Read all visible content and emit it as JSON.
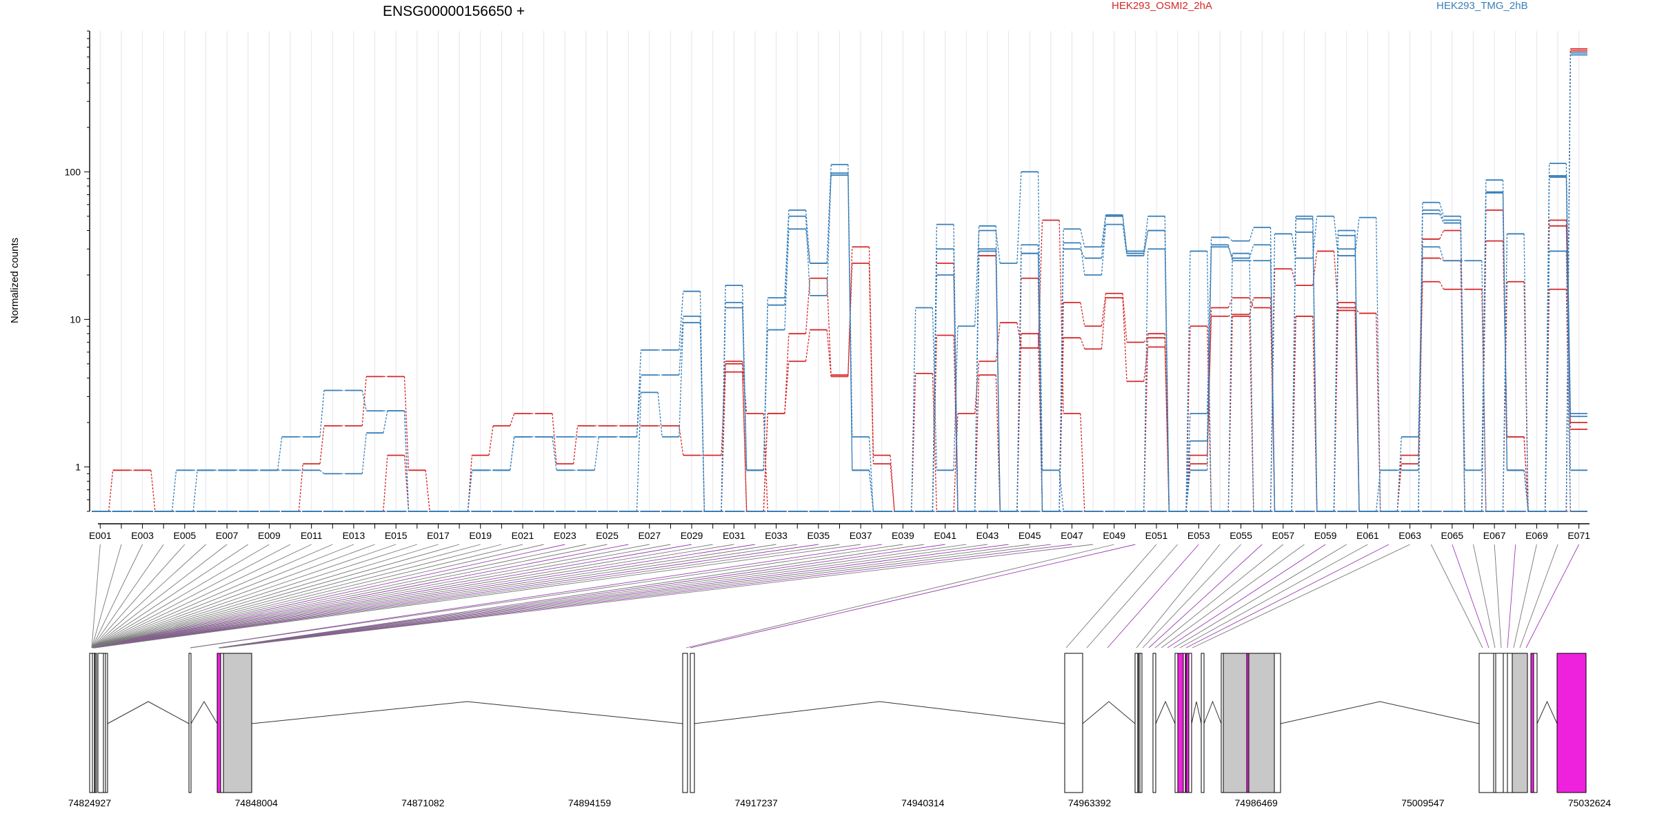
{
  "chart_data": {
    "type": "line",
    "title": "ENSG00000156650 +",
    "ylabel": "Normalized counts",
    "yscale": "log",
    "ylim": [
      0.5,
      900
    ],
    "y_ticks": [
      1,
      10,
      100
    ],
    "y_tick_labels": [
      "1",
      "10",
      "100"
    ],
    "grid": "vertical",
    "legend_placement": "top",
    "colors": {
      "HEK293_OSMI2_2hA": "#d62728",
      "HEK293_TMG_2hB": "#377eb8"
    },
    "exon_labels": [
      "E001",
      "E003",
      "E005",
      "E007",
      "E009",
      "E011",
      "E013",
      "E015",
      "E017",
      "E019",
      "E021",
      "E023",
      "E025",
      "E027",
      "E029",
      "E031",
      "E033",
      "E035",
      "E037",
      "E039",
      "E041",
      "E043",
      "E045",
      "E047",
      "E049",
      "E051",
      "E053",
      "E055",
      "E057",
      "E059",
      "E061",
      "E063",
      "E065",
      "E067",
      "E069",
      "E071"
    ],
    "series": [
      {
        "name": "HEK293_OSMI2_2hA",
        "color": "#d62728",
        "values": [
          0.5,
          0.95,
          0.95,
          0.5,
          0.5,
          0.5,
          0.5,
          0.5,
          0.5,
          0.5,
          0.5,
          0.5,
          0.5,
          0.5,
          0.5,
          0.5,
          0.5,
          0.5,
          0.5,
          0.5,
          0.5,
          0.5,
          0.5,
          0.5,
          0.5,
          0.5,
          0.5,
          0.5,
          0.5,
          0.5,
          0.5,
          0.5,
          0.5,
          0.5,
          0.5,
          0.5,
          0.5,
          0.5,
          0.5,
          0.5,
          0.5,
          0.5,
          0.5,
          0.5,
          0.5,
          0.5,
          0.5,
          0.5,
          0.5,
          0.5,
          0.5,
          0.5,
          0.5,
          0.5,
          0.5,
          0.5,
          0.5,
          0.5,
          0.5,
          0.5,
          0.5,
          0.5,
          0.5,
          0.5,
          0.5,
          0.5,
          0.5,
          0.5,
          0.5,
          0.5,
          0.5
        ]
      },
      {
        "name": "HEK293_OSMI2_2hA",
        "color": "#d62728",
        "values": [
          0.5,
          0.5,
          0.5,
          0.5,
          0.5,
          0.5,
          0.5,
          0.5,
          0.5,
          0.5,
          1.05,
          1.9,
          1.9,
          4.1,
          4.1,
          0.95,
          0.5,
          0.5,
          1.2,
          1.9,
          2.3,
          2.3,
          1.05,
          1.9,
          1.9,
          1.9,
          1.9,
          1.9,
          1.2,
          1.2,
          5.2,
          2.3,
          0.5,
          0.5,
          0.5,
          0.5,
          0.5,
          0.5,
          0.5,
          0.5,
          0.5,
          0.5,
          0.5,
          0.5,
          0.5,
          0.5,
          0.5,
          0.5,
          0.5,
          0.5,
          0.5,
          0.5,
          0.5,
          0.5,
          0.5,
          0.5,
          0.5,
          0.5,
          0.5,
          0.5,
          0.5,
          0.5,
          0.5,
          0.5,
          0.5,
          0.5,
          0.5,
          0.5,
          0.5,
          0.5,
          680
        ]
      },
      {
        "name": "HEK293_OSMI2_2hA",
        "color": "#d62728",
        "values": [
          0.5,
          0.5,
          0.5,
          0.5,
          0.5,
          0.5,
          0.5,
          0.5,
          0.5,
          0.5,
          0.5,
          0.5,
          0.5,
          0.5,
          1.2,
          0.5,
          0.5,
          0.5,
          0.5,
          0.5,
          0.5,
          0.5,
          0.5,
          0.5,
          0.5,
          0.5,
          0.5,
          0.5,
          0.5,
          0.5,
          0.5,
          0.5,
          0.5,
          0.5,
          0.5,
          0.5,
          0.5,
          0.5,
          0.5,
          0.5,
          0.5,
          0.5,
          0.5,
          0.5,
          0.5,
          0.5,
          0.5,
          0.5,
          0.5,
          0.5,
          0.5,
          0.5,
          0.5,
          0.5,
          0.5,
          0.5,
          0.5,
          0.5,
          0.5,
          0.5,
          0.5,
          0.5,
          0.5,
          0.5,
          0.5,
          0.5,
          0.5,
          0.5,
          0.5,
          0.5,
          660
        ]
      },
      {
        "name": "HEK293_OSMI2_2hA",
        "color": "#d62728",
        "values": [
          0.5,
          0.5,
          0.5,
          0.5,
          0.5,
          0.5,
          0.5,
          0.5,
          0.5,
          0.5,
          0.5,
          0.5,
          0.5,
          0.5,
          0.5,
          0.5,
          0.5,
          0.5,
          0.5,
          0.5,
          0.5,
          0.5,
          0.5,
          0.5,
          0.5,
          0.5,
          0.5,
          0.5,
          0.5,
          0.5,
          0.5,
          0.5,
          0.5,
          0.5,
          0.5,
          0.5,
          0.5,
          0.5,
          0.5,
          4.3,
          0.5,
          2.3,
          5.2,
          9.5,
          6.4,
          47,
          2.3,
          0.5,
          0.5,
          0.5,
          8,
          0.5,
          9,
          0.5,
          10.5,
          0.5,
          22,
          17,
          29,
          12,
          11,
          0.5,
          1.2,
          18,
          16,
          16,
          0.5,
          18,
          0.5,
          16,
          0.5
        ]
      },
      {
        "name": "HEK293_OSMI2_2hA",
        "color": "#d62728",
        "values": [
          0.5,
          0.5,
          0.5,
          0.5,
          0.5,
          0.5,
          0.5,
          0.5,
          0.5,
          0.5,
          0.5,
          0.5,
          0.5,
          0.5,
          0.5,
          0.5,
          0.5,
          0.5,
          0.5,
          0.5,
          0.5,
          0.5,
          0.5,
          0.5,
          0.5,
          0.5,
          0.5,
          0.5,
          0.5,
          0.5,
          5,
          0.5,
          2.3,
          8,
          19,
          4.2,
          31,
          1.2,
          0.5,
          0.5,
          7.8,
          0.5,
          4.2,
          0.5,
          8,
          0.5,
          13,
          9,
          15,
          7,
          7.5,
          0.5,
          1.05,
          12,
          14,
          12,
          0.5,
          10.5,
          0.5,
          13,
          0.5,
          0.5,
          1.05,
          35,
          40,
          0.5,
          55,
          1.6,
          0.5,
          47,
          2
        ]
      },
      {
        "name": "HEK293_OSMI2_2hA",
        "color": "#d62728",
        "values": [
          0.5,
          0.5,
          0.5,
          0.5,
          0.5,
          0.5,
          0.5,
          0.5,
          0.5,
          0.5,
          0.5,
          0.5,
          0.5,
          0.5,
          0.5,
          0.5,
          0.5,
          0.5,
          0.5,
          0.5,
          0.5,
          0.5,
          0.5,
          0.5,
          0.5,
          0.5,
          0.5,
          0.5,
          0.5,
          0.5,
          4.4,
          0.5,
          2.3,
          5.2,
          8.5,
          4.1,
          24,
          1.05,
          0.5,
          0.5,
          24,
          0.5,
          27,
          0.5,
          19,
          0.5,
          7.5,
          6.3,
          14,
          3.8,
          6.5,
          0.5,
          1.2,
          10.5,
          10.8,
          14,
          0.5,
          10.5,
          0.5,
          11.5,
          0.5,
          0.5,
          0.5,
          26,
          25,
          0.5,
          34,
          1.6,
          0.5,
          43,
          1.8
        ]
      },
      {
        "name": "HEK293_TMG_2hB",
        "color": "#377eb8",
        "values": [
          0.5,
          0.5,
          0.5,
          0.5,
          0.95,
          0.95,
          0.95,
          0.95,
          0.95,
          1.6,
          1.6,
          3.3,
          3.3,
          2.4,
          2.4,
          0.5,
          0.5,
          0.5,
          0.95,
          0.95,
          1.6,
          1.6,
          1.6,
          1.6,
          1.6,
          1.6,
          4.2,
          4.2,
          10.5,
          0.5,
          0.5,
          0.5,
          0.5,
          0.5,
          0.5,
          0.5,
          0.5,
          0.5,
          0.5,
          0.5,
          0.5,
          0.5,
          0.5,
          0.5,
          0.5,
          0.5,
          0.5,
          0.5,
          0.5,
          0.5,
          0.5,
          0.5,
          0.5,
          0.5,
          0.5,
          0.5,
          0.5,
          0.5,
          0.5,
          0.5,
          0.5,
          0.5,
          0.5,
          0.5,
          0.5,
          0.5,
          0.5,
          0.5,
          0.5,
          0.5,
          620
        ]
      },
      {
        "name": "HEK293_TMG_2hB",
        "color": "#377eb8",
        "values": [
          0.5,
          0.5,
          0.5,
          0.5,
          0.5,
          0.95,
          0.95,
          0.95,
          0.95,
          0.95,
          0.95,
          0.9,
          0.9,
          1.7,
          2.4,
          0.5,
          0.5,
          0.5,
          0.95,
          0.95,
          1.6,
          1.6,
          0.95,
          0.95,
          1.6,
          1.6,
          6.2,
          6.2,
          15.5,
          0.5,
          0.5,
          0.5,
          0.5,
          0.5,
          0.5,
          0.5,
          0.5,
          0.5,
          0.5,
          0.5,
          0.5,
          0.5,
          0.5,
          0.5,
          0.5,
          0.5,
          0.5,
          0.5,
          0.5,
          0.5,
          0.5,
          0.5,
          0.5,
          0.5,
          0.5,
          0.5,
          0.5,
          0.5,
          0.5,
          0.5,
          0.5,
          0.5,
          0.5,
          0.5,
          0.5,
          0.5,
          0.5,
          0.5,
          0.5,
          0.5,
          640
        ]
      },
      {
        "name": "HEK293_TMG_2hB",
        "color": "#377eb8",
        "values": [
          0.5,
          0.5,
          0.5,
          0.5,
          0.5,
          0.5,
          0.5,
          0.5,
          0.5,
          0.5,
          0.5,
          0.5,
          0.5,
          0.5,
          0.5,
          0.5,
          0.5,
          0.5,
          0.5,
          0.5,
          0.5,
          0.5,
          0.5,
          0.5,
          0.5,
          0.5,
          3.2,
          1.6,
          9.5,
          0.5,
          0.5,
          0.5,
          0.5,
          0.5,
          0.5,
          0.5,
          0.5,
          0.5,
          0.5,
          12,
          0.95,
          9,
          40,
          24,
          100,
          0.95,
          0.5,
          0.5,
          0.5,
          0.5,
          30,
          0.5,
          29,
          0.5,
          28,
          0.5,
          38,
          26,
          50,
          27,
          49,
          0.5,
          1.6,
          31,
          25,
          25,
          0.5,
          38,
          0.5,
          29,
          0.5
        ]
      },
      {
        "name": "HEK293_TMG_2hB",
        "color": "#377eb8",
        "values": [
          0.5,
          0.5,
          0.5,
          0.5,
          0.5,
          0.5,
          0.5,
          0.5,
          0.5,
          0.5,
          0.5,
          0.5,
          0.5,
          0.5,
          0.5,
          0.5,
          0.5,
          0.5,
          0.5,
          0.5,
          0.5,
          0.5,
          0.5,
          0.5,
          0.5,
          0.5,
          0.5,
          0.5,
          0.5,
          0.5,
          17,
          0.95,
          14,
          55,
          24,
          112,
          1.6,
          0.5,
          0.5,
          0.5,
          44,
          0.5,
          43,
          0.5,
          32,
          0.5,
          41,
          31,
          51,
          29,
          50,
          0.5,
          2.3,
          36,
          34,
          42,
          0.5,
          50,
          0.5,
          40,
          0.5,
          0.95,
          0.95,
          62,
          50,
          0.95,
          88,
          0.95,
          0.5,
          114,
          2.3
        ]
      },
      {
        "name": "HEK293_TMG_2hB",
        "color": "#377eb8",
        "values": [
          0.5,
          0.5,
          0.5,
          0.5,
          0.5,
          0.5,
          0.5,
          0.5,
          0.5,
          0.5,
          0.5,
          0.5,
          0.5,
          0.5,
          0.5,
          0.5,
          0.5,
          0.5,
          0.5,
          0.5,
          0.5,
          0.5,
          0.5,
          0.5,
          0.5,
          0.5,
          0.5,
          0.5,
          0.5,
          0.5,
          13,
          0.95,
          12.5,
          50,
          14.5,
          98,
          0.95,
          0.5,
          0.5,
          0.5,
          20,
          0.5,
          30,
          0.5,
          28,
          0.5,
          33,
          20,
          44,
          27,
          40,
          0.5,
          0.95,
          31,
          26,
          32,
          0.5,
          48,
          0.5,
          37,
          0.5,
          0.5,
          0.5,
          55,
          47,
          0.5,
          73,
          0.95,
          0.5,
          94,
          2.2
        ]
      },
      {
        "name": "HEK293_TMG_2hB",
        "color": "#377eb8",
        "values": [
          0.5,
          0.5,
          0.5,
          0.5,
          0.5,
          0.5,
          0.5,
          0.5,
          0.5,
          0.5,
          0.5,
          0.5,
          0.5,
          0.5,
          0.5,
          0.5,
          0.5,
          0.5,
          0.5,
          0.5,
          0.5,
          0.5,
          0.5,
          0.5,
          0.5,
          0.5,
          0.5,
          0.5,
          0.5,
          0.5,
          12,
          0.95,
          8.5,
          41,
          24,
          95,
          0.95,
          0.5,
          0.5,
          0.5,
          30,
          0.5,
          29,
          0.5,
          28,
          0.5,
          30,
          26,
          50,
          28,
          40,
          0.5,
          1.5,
          32,
          25,
          25,
          0.5,
          39,
          0.5,
          30,
          0.5,
          0.5,
          0.5,
          52,
          45,
          0.5,
          72,
          0.95,
          0.5,
          92,
          0.95
        ]
      }
    ],
    "legend": [
      {
        "label": "HEK293_OSMI2_2hA",
        "color": "#d62728"
      },
      {
        "label": "HEK293_TMG_2hB",
        "color": "#377eb8"
      }
    ],
    "genomic_coordinates": [
      "74824927",
      "74848004",
      "74871082",
      "74894159",
      "74917237",
      "74940314",
      "74963392",
      "74986469",
      "75009547",
      "75032624"
    ],
    "genomic_range": [
      74824927,
      75032624
    ],
    "exon_colors": {
      "default": "#ffffff",
      "partial": "#c8c8c8",
      "highlight": "#ee22dd"
    }
  }
}
